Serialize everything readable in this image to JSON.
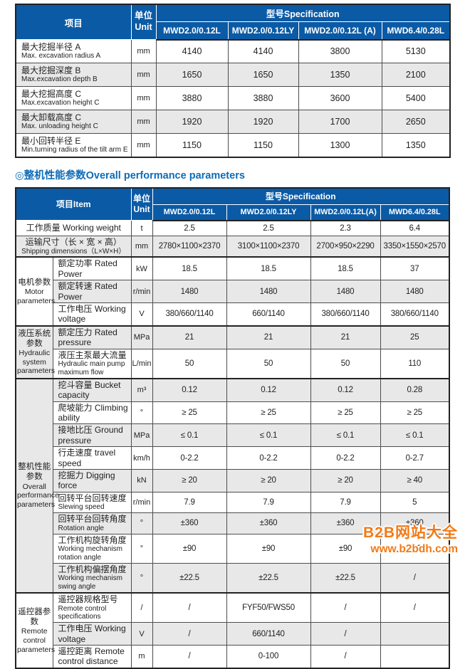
{
  "colors": {
    "header_blue": "#0b5aa5",
    "stripe_gray": "#e8e8e8",
    "heading_blue": "#0d6cb8",
    "watermark_orange": "#f17a16",
    "border": "#4d4d4d"
  },
  "heading": {
    "text": "◎整机性能参数Overall performance parameters"
  },
  "table1": {
    "header": {
      "item": "项目",
      "unit_cn": "单位",
      "unit_en": "Unit",
      "spec": "型号Specification",
      "models": [
        "MWD2.0/0.12L",
        "MWD2.0/0.12LY",
        "MWD2.0/0.12L (A)",
        "MWD6.4/0.28L"
      ]
    },
    "rows": [
      {
        "cn": "最大挖掘半径 A",
        "en": "Max. excavation radius A",
        "unit": "mm",
        "values": [
          "4140",
          "4140",
          "3800",
          "5130"
        ]
      },
      {
        "cn": "最大挖掘深度 B",
        "en": "Max.excavation depth B",
        "unit": "mm",
        "values": [
          "1650",
          "1650",
          "1350",
          "2100"
        ]
      },
      {
        "cn": "最大挖掘高度 C",
        "en": "Max.excavation height C",
        "unit": "mm",
        "values": [
          "3880",
          "3880",
          "3600",
          "5400"
        ]
      },
      {
        "cn": "最大卸载高度 C",
        "en": "Max. unloading height C",
        "unit": "mm",
        "values": [
          "1920",
          "1920",
          "1700",
          "2650"
        ]
      },
      {
        "cn": "最小回转半径 E",
        "en": "Min.turning radius of the tilt arm E",
        "unit": "mm",
        "values": [
          "1150",
          "1150",
          "1300",
          "1350"
        ]
      }
    ]
  },
  "table2": {
    "header": {
      "item": "项目Item",
      "unit_cn": "单位",
      "unit_en": "Unit",
      "spec": "型号Specification",
      "models": [
        "MWD2.0/0.12L",
        "MWD2.0/0.12LY",
        "MWD2.0/0.12L(A)",
        "MWD6.4/0.28L"
      ]
    },
    "groups": [
      {
        "cn_lines": [],
        "en_lines": [],
        "rows": [
          {
            "cn": "工作质量 Working weight",
            "en": null,
            "unit": "t",
            "values": [
              "2.5",
              "2.5",
              "2.3",
              "6.4"
            ]
          },
          {
            "cn": "运输尺寸（长 × 宽 × 高）",
            "en": "Shipping dimensions（L×W×H）",
            "unit": "mm",
            "values": [
              "2780×1100×2370",
              "3100×1100×2370",
              "2700×950×2290",
              "3350×1550×2570"
            ]
          }
        ]
      },
      {
        "cn_lines": [
          "电机参数"
        ],
        "en_lines": [
          "Motor",
          "parameters"
        ],
        "rows": [
          {
            "cn": "额定功率 Rated Power",
            "en": null,
            "unit": "kW",
            "values": [
              "18.5",
              "18.5",
              "18.5",
              "37"
            ]
          },
          {
            "cn": "额定转速 Rated Power",
            "en": null,
            "unit": "r/min",
            "values": [
              "1480",
              "1480",
              "1480",
              "1480"
            ]
          },
          {
            "cn": "工作电压 Working voltage",
            "en": null,
            "unit": "V",
            "values": [
              "380/660/1140",
              "660/1140",
              "380/660/1140",
              "380/660/1140"
            ]
          }
        ]
      },
      {
        "cn_lines": [
          "液压系统",
          "参数"
        ],
        "en_lines": [
          "Hydraulic",
          "system",
          "parameters"
        ],
        "rows": [
          {
            "cn": "额定压力 Rated pressure",
            "en": null,
            "unit": "MPa",
            "values": [
              "21",
              "21",
              "21",
              "25"
            ]
          },
          {
            "cn": "液压主泵最大流量",
            "en": "Hydraulic main pump maximum flow",
            "unit": "L/min",
            "values": [
              "50",
              "50",
              "50",
              "110"
            ]
          }
        ]
      },
      {
        "cn_lines": [
          "整机性能",
          "参数"
        ],
        "en_lines": [
          "Overall",
          "performance",
          "parameters"
        ],
        "rows": [
          {
            "cn": "挖斗容量 Bucket capacity",
            "en": null,
            "unit": "m³",
            "values": [
              "0.12",
              "0.12",
              "0.12",
              "0.28"
            ]
          },
          {
            "cn": "爬坡能力 Climbing ability",
            "en": null,
            "unit": "°",
            "values": [
              "≥ 25",
              "≥ 25",
              "≥ 25",
              "≥ 25"
            ]
          },
          {
            "cn": "接地比压 Ground pressure",
            "en": null,
            "unit": "MPa",
            "values": [
              "≤ 0.1",
              "≤ 0.1",
              "≤ 0.1",
              "≤ 0.1"
            ]
          },
          {
            "cn": "行走速度 travel speed",
            "en": null,
            "unit": "km/h",
            "values": [
              "0-2.2",
              "0-2.2",
              "0-2.2",
              "0-2.7"
            ]
          },
          {
            "cn": "挖掘力 Digging force",
            "en": null,
            "unit": "kN",
            "values": [
              "≥ 20",
              "≥ 20",
              "≥ 20",
              "≥ 40"
            ]
          },
          {
            "cn": "回转平台回转速度",
            "en": "Slewing speed",
            "unit": "r/min",
            "values": [
              "7.9",
              "7.9",
              "7.9",
              "5"
            ]
          },
          {
            "cn": "回转平台回转角度",
            "en": "Rotation angle",
            "unit": "°",
            "values": [
              "±360",
              "±360",
              "±360",
              "±360"
            ]
          },
          {
            "cn": "工作机构旋转角度",
            "en": "Working mechanism rotation angle",
            "unit": "°",
            "values": [
              "±90",
              "±90",
              "±90",
              "±90"
            ]
          },
          {
            "cn": "工作机构偏摆角度",
            "en": "Working mechanism swing angle",
            "unit": "°",
            "values": [
              "±22.5",
              "±22.5",
              "±22.5",
              "/"
            ]
          }
        ]
      },
      {
        "cn_lines": [
          "遥控器参数"
        ],
        "en_lines": [
          "Remote",
          "control",
          "parameters"
        ],
        "rows": [
          {
            "cn": "遥控器规格型号",
            "en": "Remote control specifications",
            "unit": "/",
            "values": [
              "/",
              "FYF50/FWS50",
              "/",
              "/"
            ]
          },
          {
            "cn": "工作电压 Working voltage",
            "en": null,
            "unit": "V",
            "values": [
              "/",
              "660/1140",
              "/",
              ""
            ]
          },
          {
            "cn": "遥控距离 Remote control distance",
            "en": null,
            "unit": "m",
            "values": [
              "/",
              "0-100",
              "/",
              ""
            ]
          }
        ]
      }
    ]
  },
  "watermark": {
    "line1": "B2B网站大全",
    "line2": "www.b2bdh.com"
  }
}
